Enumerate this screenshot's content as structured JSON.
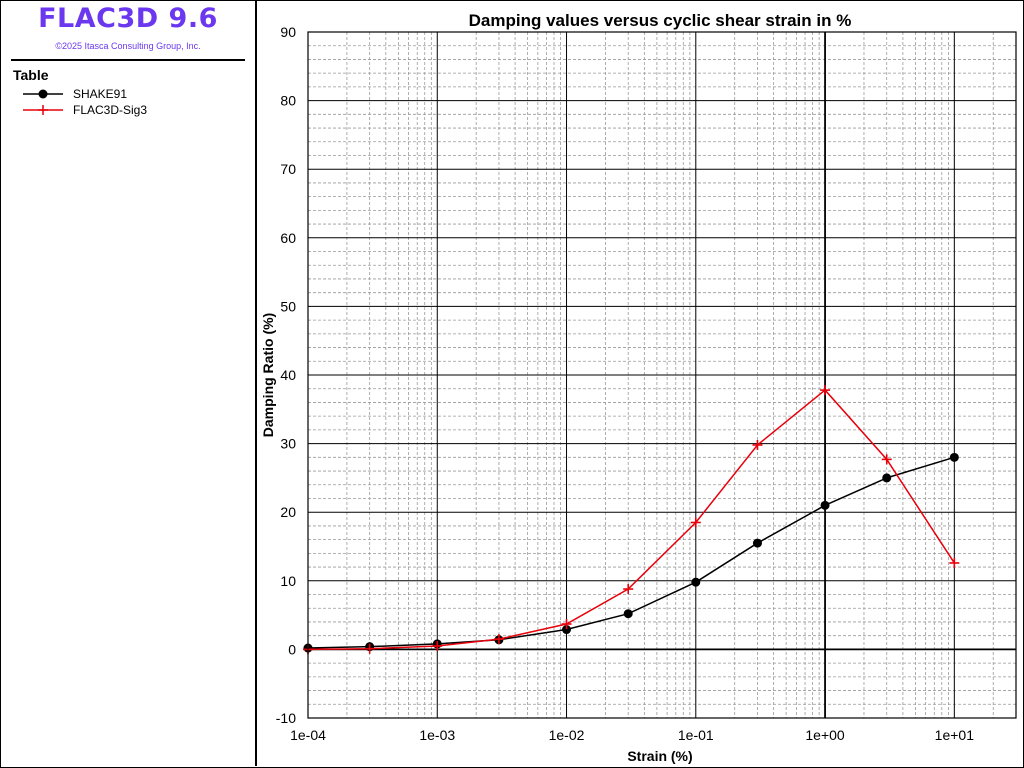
{
  "app": {
    "title": "FLAC3D 9.6",
    "copyright": "©2025 Itasca Consulting Group, Inc."
  },
  "legend": {
    "heading": "Table",
    "entries": [
      {
        "label": "SHAKE91",
        "color": "#000000",
        "marker": "circle"
      },
      {
        "label": "FLAC3D-Sig3",
        "color": "#e8000b",
        "marker": "plus"
      }
    ]
  },
  "chart_data": {
    "type": "line",
    "title": "Damping values versus cyclic shear strain in %",
    "xlabel": "Strain (%)",
    "ylabel": "Damping Ratio (%)",
    "xscale": "log",
    "xlim": [
      0.0001,
      30
    ],
    "ylim": [
      -10,
      90
    ],
    "x_tick_values": [
      0.0001,
      0.001,
      0.01,
      0.1,
      1,
      10
    ],
    "x_tick_labels": [
      "1e-04",
      "1e-03",
      "1e-02",
      "1e-01",
      "1e+00",
      "1e+01"
    ],
    "y_tick_values": [
      -10,
      0,
      10,
      20,
      30,
      40,
      50,
      60,
      70,
      80,
      90
    ],
    "y_tick_labels": [
      "-10",
      "0",
      "10",
      "20",
      "30",
      "40",
      "50",
      "60",
      "70",
      "80",
      "90"
    ],
    "grid": true,
    "series": [
      {
        "name": "SHAKE91",
        "color": "#000000",
        "marker": "circle",
        "x": [
          0.0001,
          0.0003,
          0.001,
          0.003,
          0.01,
          0.03,
          0.1,
          0.3,
          1,
          3,
          10
        ],
        "y": [
          0.2,
          0.4,
          0.8,
          1.4,
          2.9,
          5.2,
          9.8,
          15.5,
          21.0,
          25.0,
          28.0
        ]
      },
      {
        "name": "FLAC3D-Sig3",
        "color": "#e8000b",
        "marker": "plus",
        "x": [
          0.0001,
          0.0003,
          0.001,
          0.003,
          0.01,
          0.03,
          0.1,
          0.3,
          1,
          3,
          10
        ],
        "y": [
          0.0,
          0.1,
          0.5,
          1.5,
          3.7,
          8.8,
          18.5,
          29.8,
          37.8,
          27.7,
          12.6
        ]
      }
    ]
  }
}
